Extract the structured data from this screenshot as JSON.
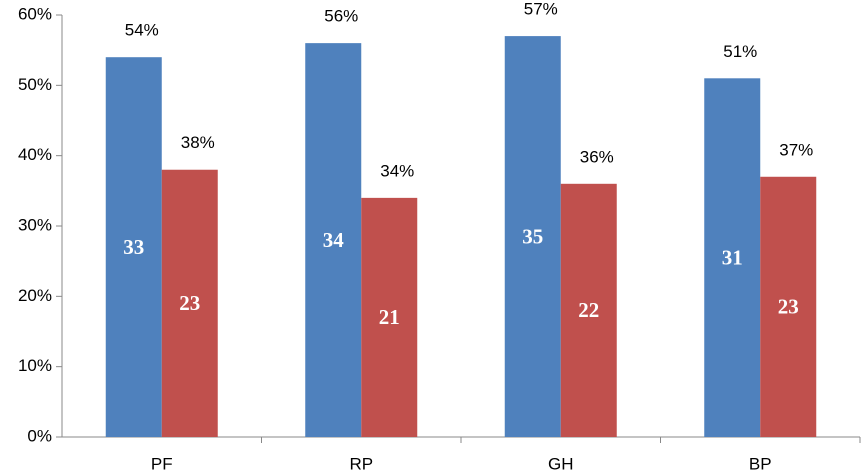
{
  "chart_data": {
    "type": "bar",
    "categories": [
      "PF",
      "RP",
      "GH",
      "BP"
    ],
    "series": [
      {
        "color": "#4f81bd",
        "values": [
          54,
          56,
          57,
          51
        ],
        "value_labels": [
          "54%",
          "56%",
          "57%",
          "51%"
        ],
        "counts": [
          33,
          34,
          35,
          31
        ]
      },
      {
        "color": "#c0504d",
        "values": [
          38,
          34,
          36,
          37
        ],
        "value_labels": [
          "38%",
          "34%",
          "36%",
          "37%"
        ],
        "counts": [
          23,
          21,
          22,
          23
        ]
      }
    ],
    "ylim": [
      0,
      60
    ],
    "yticks": [
      {
        "value": 0,
        "label": "0%"
      },
      {
        "value": 10,
        "label": "10%"
      },
      {
        "value": 20,
        "label": "20%"
      },
      {
        "value": 30,
        "label": "30%"
      },
      {
        "value": 40,
        "label": "40%"
      },
      {
        "value": 50,
        "label": "50%"
      },
      {
        "value": 60,
        "label": "60%"
      }
    ],
    "grid": false
  }
}
